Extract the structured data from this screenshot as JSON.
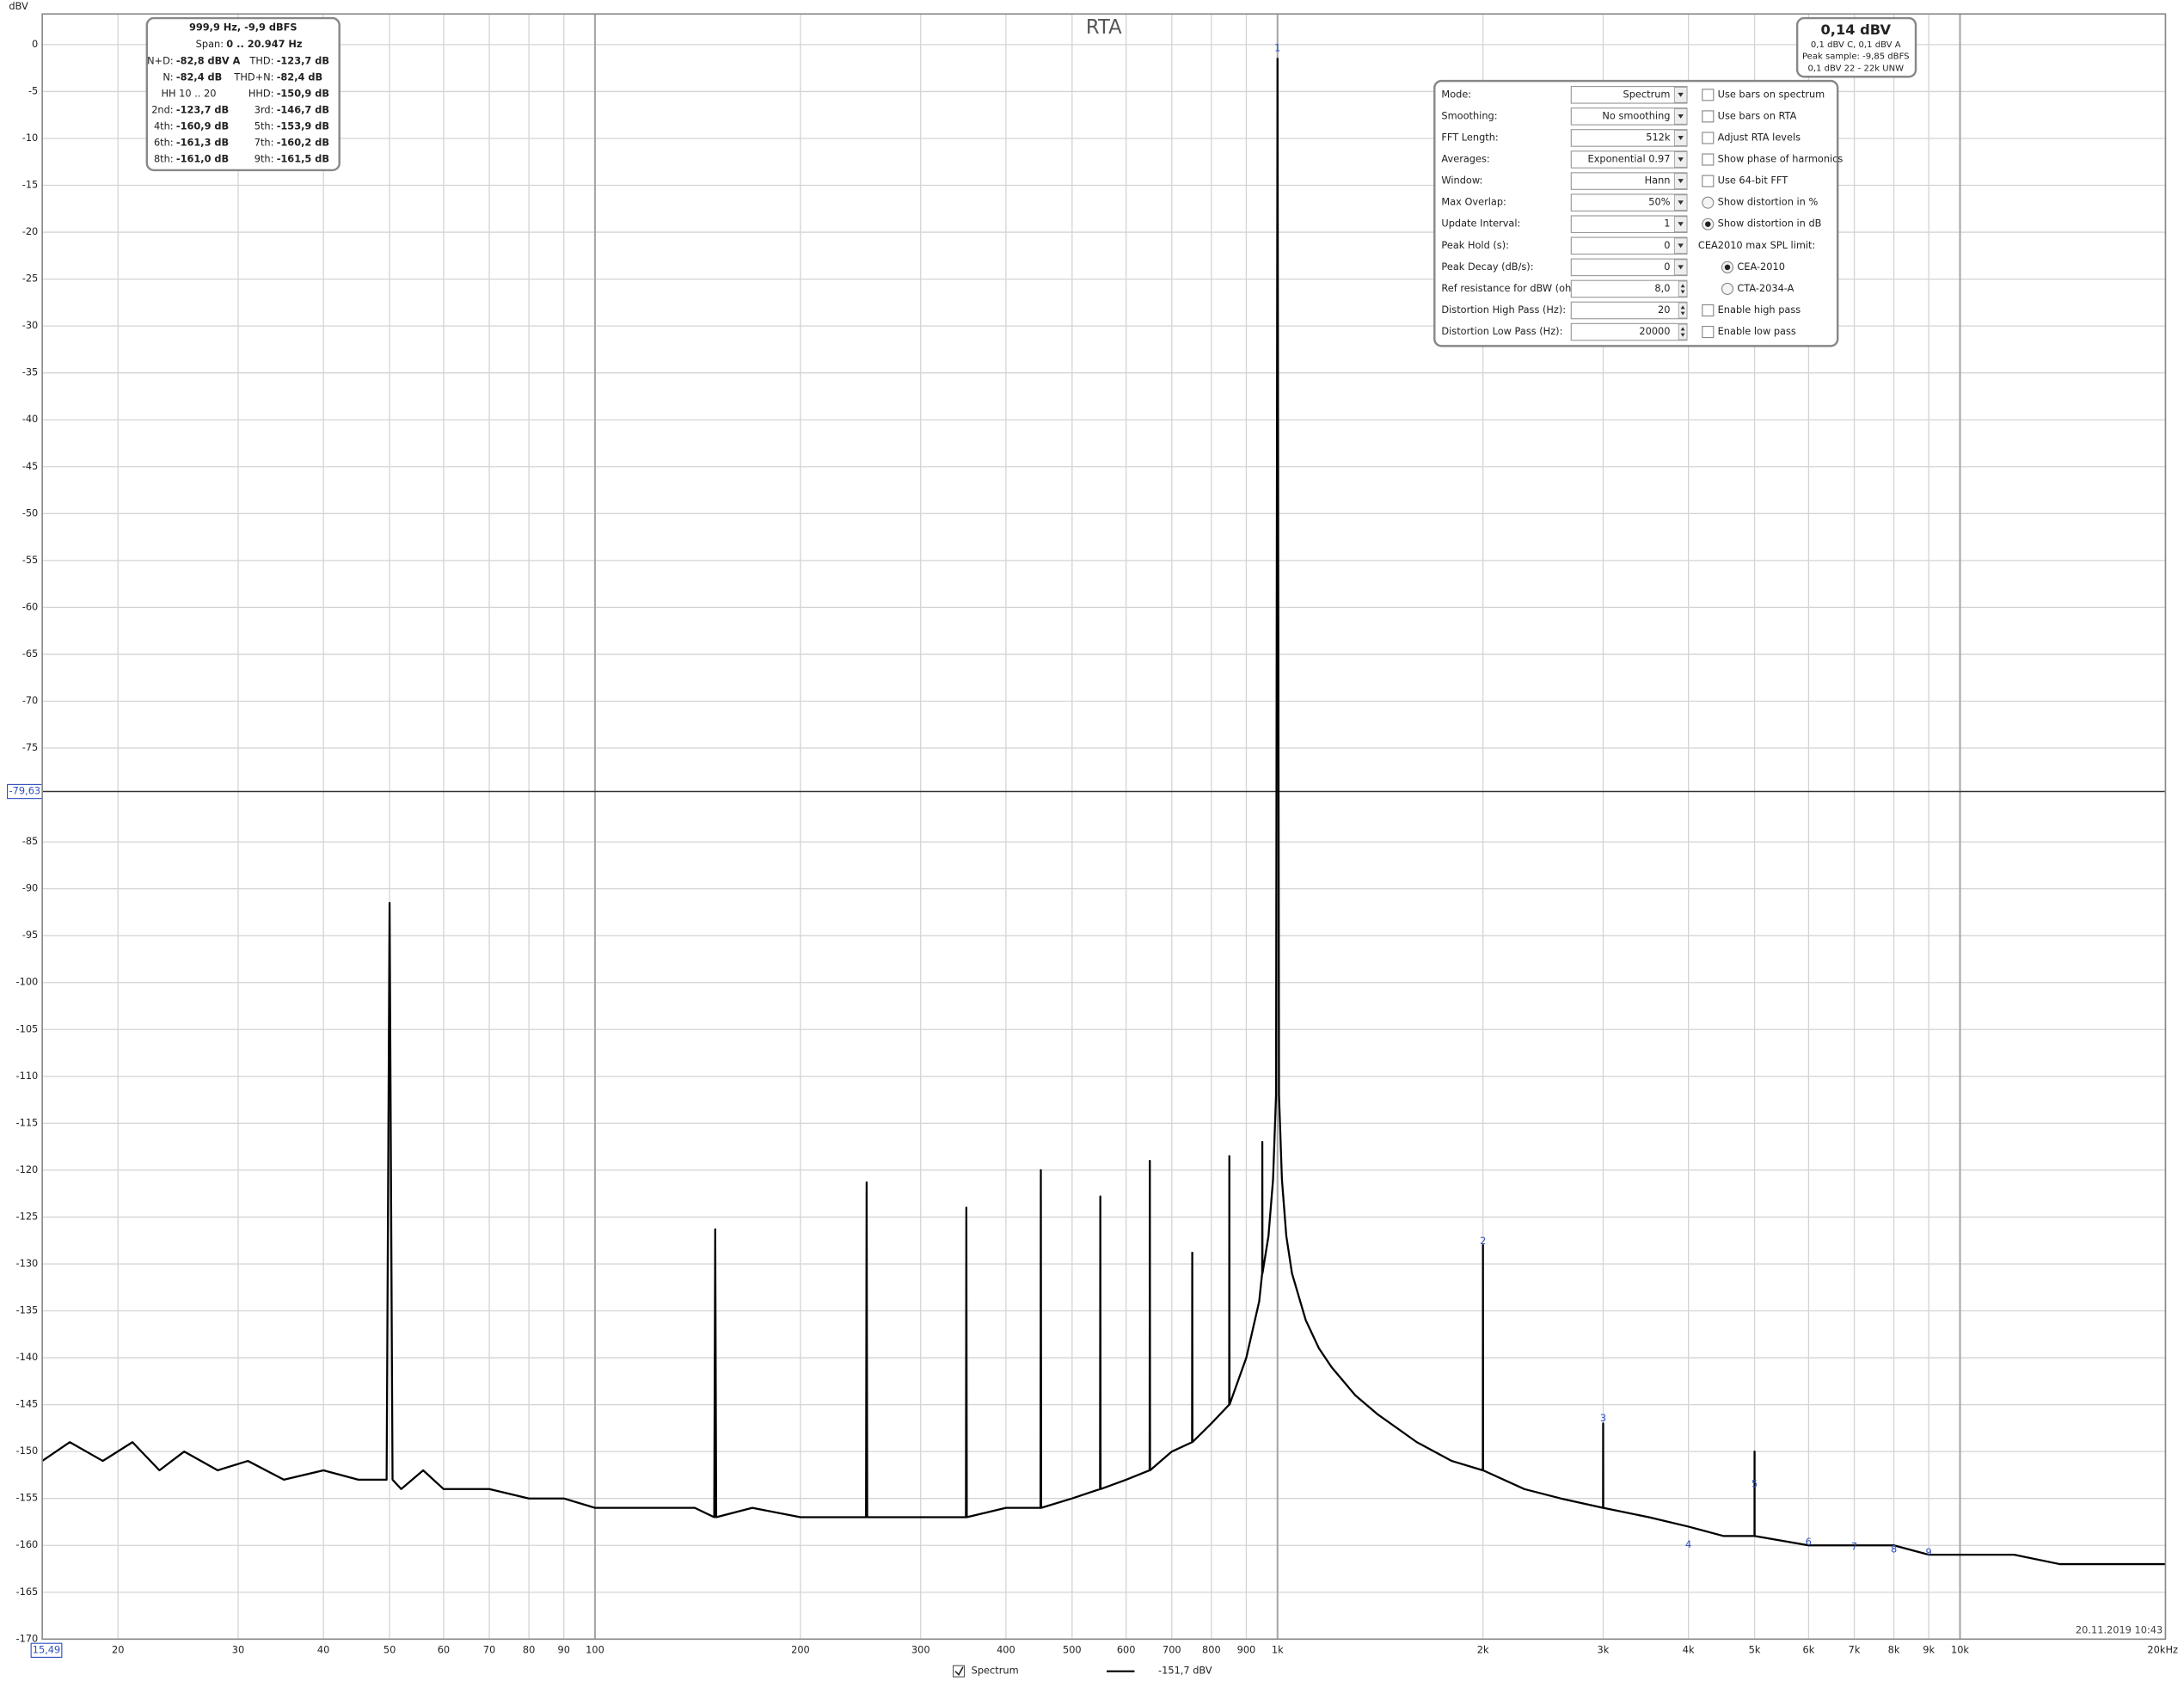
{
  "chart_data": {
    "type": "line",
    "title": "RTA",
    "y_label": "dBV",
    "timestamp": "20.11.2019 10:43",
    "xscale": "log",
    "grid": true,
    "xlim": [
      15.49,
      20000
    ],
    "ylim": [
      -170,
      3.27
    ],
    "xticks": [
      20,
      30,
      40,
      50,
      60,
      70,
      80,
      90,
      100,
      200,
      300,
      400,
      500,
      600,
      700,
      800,
      900,
      {
        "value": 1000,
        "label": "1k"
      },
      {
        "value": 2000,
        "label": "2k"
      },
      {
        "value": 3000,
        "label": "3k"
      },
      {
        "value": 4000,
        "label": "4k"
      },
      {
        "value": 5000,
        "label": "5k"
      },
      {
        "value": 6000,
        "label": "6k"
      },
      {
        "value": 7000,
        "label": "7k"
      },
      {
        "value": 8000,
        "label": "8k"
      },
      {
        "value": 9000,
        "label": "9k"
      },
      {
        "value": 10000,
        "label": "10k"
      },
      {
        "value": 20000,
        "label": "20kHz"
      }
    ],
    "major_xticks": [
      100,
      1000,
      10000
    ],
    "yticks": [
      0,
      -5,
      -10,
      -15,
      -20,
      -25,
      -30,
      -35,
      -40,
      -45,
      -50,
      -55,
      -60,
      -65,
      -70,
      -75,
      -85,
      -90,
      -95,
      -100,
      -105,
      -110,
      -115,
      -120,
      -125,
      -130,
      -135,
      -140,
      -145,
      -150,
      -155,
      -160,
      -165,
      -170
    ],
    "cursor": {
      "x": {
        "value": 15.49,
        "label": "15,49"
      },
      "y": {
        "value": -79.63,
        "label": "-79,63"
      }
    },
    "x": [
      15.49,
      17,
      19,
      21,
      23,
      25,
      28,
      31,
      35,
      40,
      45,
      49.5,
      50,
      50.5,
      52,
      56,
      60,
      70,
      80,
      90,
      100,
      120,
      140,
      149.5,
      150,
      150.5,
      170,
      200,
      230,
      249.5,
      250,
      250.5,
      300,
      349.5,
      350,
      350.5,
      400,
      449.5,
      450,
      450.5,
      500,
      549.5,
      550,
      550.5,
      600,
      649.5,
      650,
      650.5,
      700,
      749.5,
      750,
      750.5,
      800,
      849.5,
      850,
      850.5,
      900,
      940,
      949.5,
      950,
      950.5,
      970,
      985,
      995,
      1000,
      1005,
      1015,
      1030,
      1050,
      1100,
      1150,
      1200,
      1300,
      1400,
      1600,
      1800,
      1999,
      2000,
      2001,
      2300,
      2600,
      2999,
      3000,
      3001,
      3500,
      4000,
      4500,
      4999,
      5000,
      5001,
      6000,
      7000,
      8000,
      9000,
      10000,
      12000,
      14000,
      17000,
      20000
    ],
    "series": [
      {
        "name": "Spectrum",
        "color": "#000000",
        "legend_value": "-151,7 dBV",
        "values": [
          -151,
          -149,
          -151,
          -149,
          -152,
          -150,
          -152,
          -151,
          -153,
          -152,
          -153,
          -153,
          -91.5,
          -153,
          -154,
          -152,
          -154,
          -154,
          -155,
          -155,
          -156,
          -156,
          -156,
          -157,
          -126.3,
          -157,
          -156,
          -157,
          -157,
          -157,
          -121.3,
          -157,
          -157,
          -157,
          -124,
          -157,
          -156,
          -156,
          -120,
          -156,
          -155,
          -154,
          -122.8,
          -154,
          -153,
          -152,
          -119,
          -152,
          -150,
          -149,
          -128.8,
          -149,
          -147,
          -145,
          -118.5,
          -145,
          -140,
          -134,
          -131,
          -117,
          -131,
          -127,
          -121,
          -112,
          -1.5,
          -112,
          -121,
          -127,
          -131,
          -136,
          -139,
          -141,
          -144,
          -146,
          -149,
          -151,
          -152,
          -128,
          -152,
          -154,
          -155,
          -156,
          -147,
          -156,
          -157,
          -158,
          -159,
          -159,
          -150,
          -159,
          -160,
          -160,
          -160,
          -161,
          -161,
          -161,
          -162,
          -162,
          -162
        ]
      }
    ],
    "harmonics": [
      {
        "label": "1",
        "x": 1000,
        "y": -0.4
      },
      {
        "label": "2",
        "x": 2000,
        "y": -127.6
      },
      {
        "label": "3",
        "x": 3000,
        "y": -146.5
      },
      {
        "label": "4",
        "x": 4000,
        "y": -160
      },
      {
        "label": "5",
        "x": 5000,
        "y": -153.5
      },
      {
        "label": "6",
        "x": 6000,
        "y": -159.7
      },
      {
        "label": "7",
        "x": 7000,
        "y": -160.2
      },
      {
        "label": "8",
        "x": 8000,
        "y": -160.5
      },
      {
        "label": "9",
        "x": 9000,
        "y": -160.8
      }
    ],
    "info_box": {
      "header": "999,9 Hz, -9,9 dBFS",
      "span_label": "Span:",
      "span_value": "0 .. 20.947 Hz",
      "rows": [
        [
          "N+D:",
          "-82,8 dBV A",
          "THD:",
          "-123,7 dB"
        ],
        [
          "N:",
          "-82,4 dB",
          "THD+N:",
          "-82,4 dB"
        ],
        [
          "HH 10 .. 20",
          "HHD:",
          "-150,9 dB"
        ],
        [
          "2nd:",
          "-123,7 dB",
          "3rd:",
          "-146,7 dB"
        ],
        [
          "4th:",
          "-160,9 dB",
          "5th:",
          "-153,9 dB"
        ],
        [
          "6th:",
          "-161,3 dB",
          "7th:",
          "-160,2 dB"
        ],
        [
          "8th:",
          "-161,0 dB",
          "9th:",
          "-161,5 dB"
        ]
      ]
    },
    "level_box": {
      "main": "0,14 dBV",
      "lines": [
        "0,1 dBV C, 0,1 dBV A",
        "Peak sample: -9,85 dBFS",
        "0,1 dBV 22 - 22k UNW"
      ]
    },
    "settings": {
      "fields": [
        [
          "Mode:",
          "Spectrum"
        ],
        [
          "Smoothing:",
          "No  smoothing"
        ],
        [
          "FFT Length:",
          "512k"
        ],
        [
          "Averages:",
          "Exponential 0.97"
        ],
        [
          "Window:",
          "Hann"
        ],
        [
          "Max Overlap:",
          "50%"
        ],
        [
          "Update Interval:",
          "1"
        ],
        [
          "Peak Hold (s):",
          "0"
        ],
        [
          "Peak Decay (dB/s):",
          "0"
        ],
        [
          "Ref resistance for dBW (ohm):",
          "8,0"
        ],
        [
          "Distortion High Pass (Hz):",
          "20"
        ],
        [
          "Distortion Low Pass (Hz):",
          "20000"
        ]
      ],
      "dropdown_count": 9,
      "options": [
        {
          "text": "Use bars on spectrum",
          "kind": "checkbox",
          "checked": false
        },
        {
          "text": "Use bars on RTA",
          "kind": "checkbox",
          "checked": false
        },
        {
          "text": "Adjust RTA levels",
          "kind": "checkbox",
          "checked": false
        },
        {
          "text": "Show phase of harmonics",
          "kind": "checkbox",
          "checked": false
        },
        {
          "text": "Use 64-bit FFT",
          "kind": "checkbox",
          "checked": false
        },
        {
          "text": "Show distortion in %",
          "kind": "radio",
          "checked": false
        },
        {
          "text": "Show distortion in dB",
          "kind": "radio",
          "checked": true
        },
        {
          "text": "CEA2010 max SPL limit:",
          "kind": "label",
          "checked": false
        },
        {
          "text": "CEA-2010",
          "kind": "radio",
          "checked": true
        },
        {
          "text": "CTA-2034-A",
          "kind": "radio",
          "checked": false
        },
        {
          "text": "Enable high pass",
          "kind": "checkbox",
          "checked": false
        },
        {
          "text": "Enable low pass",
          "kind": "checkbox",
          "checked": false
        }
      ]
    }
  }
}
